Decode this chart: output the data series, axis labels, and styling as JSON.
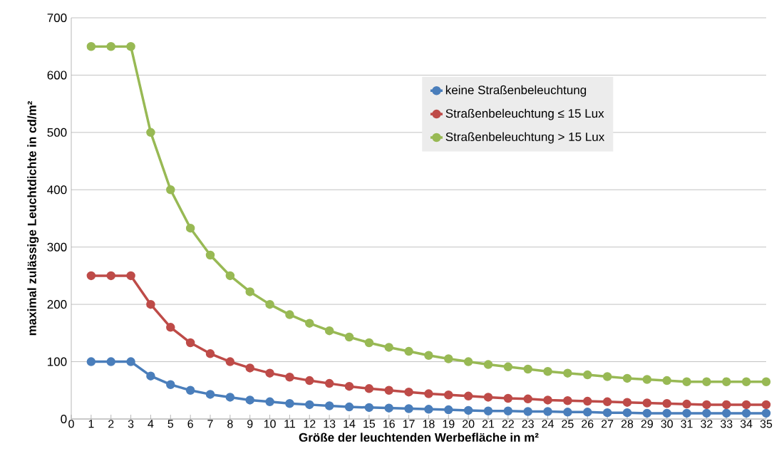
{
  "chart_data": {
    "type": "line",
    "xlabel": "Größe der leuchtenden Werbefläche in m²",
    "ylabel": "maximal zulässige Leuchtdichte in cd/m²",
    "x": [
      1,
      2,
      3,
      4,
      5,
      6,
      7,
      8,
      9,
      10,
      11,
      12,
      13,
      14,
      15,
      16,
      17,
      18,
      19,
      20,
      21,
      22,
      23,
      24,
      25,
      26,
      27,
      28,
      29,
      30,
      31,
      32,
      33,
      34,
      35
    ],
    "xlim": [
      0,
      35
    ],
    "xticks": [
      0,
      1,
      2,
      3,
      4,
      5,
      6,
      7,
      8,
      9,
      10,
      11,
      12,
      13,
      14,
      15,
      16,
      17,
      18,
      19,
      20,
      21,
      22,
      23,
      24,
      25,
      26,
      27,
      28,
      29,
      30,
      31,
      32,
      33,
      34,
      35
    ],
    "ylim": [
      0,
      700
    ],
    "yticks": [
      0,
      100,
      200,
      300,
      400,
      500,
      600,
      700
    ],
    "grid": "y",
    "legend": "right",
    "marker": "circle",
    "line_style": "solid",
    "series": [
      {
        "name": "keine Straßenbeleuchtung",
        "color": "#4a7ebb",
        "values": [
          100,
          100,
          100,
          75,
          60,
          50,
          43,
          38,
          33,
          30,
          27,
          25,
          23,
          21,
          20,
          19,
          18,
          17,
          16,
          15,
          14,
          14,
          13,
          13,
          12,
          12,
          11,
          11,
          10,
          10,
          10,
          10,
          10,
          10,
          10
        ]
      },
      {
        "name": "Straßenbeleuchtung ≤ 15 Lux",
        "color": "#be4b48",
        "values": [
          250,
          250,
          250,
          200,
          160,
          133,
          114,
          100,
          89,
          80,
          73,
          67,
          62,
          57,
          53,
          50,
          47,
          44,
          42,
          40,
          38,
          36,
          35,
          33,
          32,
          31,
          30,
          29,
          28,
          27,
          26,
          25,
          25,
          25,
          25
        ]
      },
      {
        "name": "Straßenbeleuchtung > 15 Lux",
        "color": "#98b954",
        "values": [
          650,
          650,
          650,
          500,
          400,
          333,
          286,
          250,
          222,
          200,
          182,
          167,
          154,
          143,
          133,
          125,
          118,
          111,
          105,
          100,
          95,
          91,
          87,
          83,
          80,
          77,
          74,
          71,
          69,
          67,
          65,
          65,
          65,
          65,
          65
        ]
      }
    ]
  }
}
